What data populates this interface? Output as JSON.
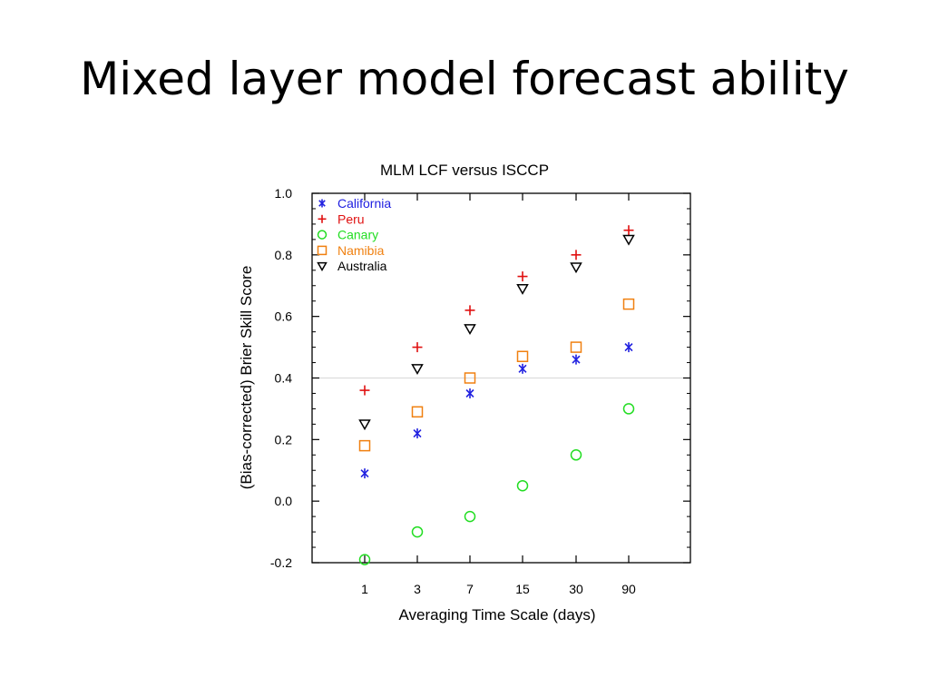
{
  "slide": {
    "title": "Mixed layer model forecast ability"
  },
  "chart_data": {
    "type": "scatter",
    "title": "MLM LCF versus ISCCP",
    "xlabel": "Averaging Time Scale (days)",
    "ylabel": "(Bias-corrected) Brier Skill Score",
    "categories": [
      "1",
      "3",
      "7",
      "15",
      "30",
      "90"
    ],
    "ylim": [
      -0.2,
      1.0
    ],
    "yticks": [
      -0.2,
      0.0,
      0.2,
      0.4,
      0.6,
      0.8,
      1.0
    ],
    "ytick_labels": [
      "-0.2",
      "0.0",
      "0.2",
      "0.4",
      "0.6",
      "0.8",
      "1.0"
    ],
    "reference_line": 0.4,
    "legend_position": "top-left",
    "series": [
      {
        "name": "California",
        "marker": "asterisk",
        "color": "#2020e0",
        "values": [
          0.09,
          0.22,
          0.35,
          0.43,
          0.46,
          0.5
        ]
      },
      {
        "name": "Peru",
        "marker": "plus",
        "color": "#e01010",
        "values": [
          0.36,
          0.5,
          0.62,
          0.73,
          0.8,
          0.88
        ]
      },
      {
        "name": "Canary",
        "marker": "circle",
        "color": "#22dd22",
        "values": [
          -0.19,
          -0.1,
          -0.05,
          0.05,
          0.15,
          0.3
        ]
      },
      {
        "name": "Namibia",
        "marker": "square",
        "color": "#f08010",
        "values": [
          0.18,
          0.29,
          0.4,
          0.47,
          0.5,
          0.64
        ]
      },
      {
        "name": "Australia",
        "marker": "triangle-down",
        "color": "#000000",
        "values": [
          0.25,
          0.43,
          0.56,
          0.69,
          0.76,
          0.85
        ]
      }
    ]
  }
}
